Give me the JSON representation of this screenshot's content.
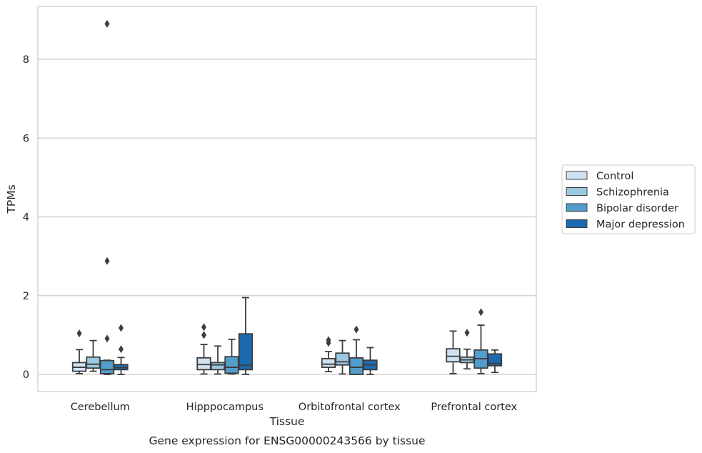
{
  "chart_data": {
    "type": "boxplot",
    "title": "",
    "caption": "Gene expression for ENSG00000243566 by tissue",
    "xlabel": "Tissue",
    "ylabel": "TPMs",
    "categories": [
      "Cerebellum",
      "Hipppocampus",
      "Orbitofrontal cortex",
      "Prefrontal cortex"
    ],
    "ylim": [
      -0.43,
      9.3
    ],
    "yticks": [
      0,
      2,
      4,
      6,
      8
    ],
    "grid": true,
    "legend_position": "right",
    "series": [
      {
        "name": "Control",
        "color": "#d1e2f2",
        "boxes": [
          {
            "whislo": 0.02,
            "q1": 0.08,
            "med": 0.18,
            "q3": 0.3,
            "whishi": 0.63,
            "fliers": [
              1.04
            ]
          },
          {
            "whislo": 0.01,
            "q1": 0.12,
            "med": 0.25,
            "q3": 0.42,
            "whishi": 0.76,
            "fliers": [
              1.0,
              1.2
            ]
          },
          {
            "whislo": 0.07,
            "q1": 0.18,
            "med": 0.26,
            "q3": 0.4,
            "whishi": 0.58,
            "fliers": [
              0.8,
              0.87
            ]
          },
          {
            "whislo": 0.02,
            "q1": 0.32,
            "med": 0.46,
            "q3": 0.65,
            "whishi": 1.1,
            "fliers": []
          }
        ]
      },
      {
        "name": "Schizophrenia",
        "color": "#9ac8e0",
        "boxes": [
          {
            "whislo": 0.08,
            "q1": 0.16,
            "med": 0.26,
            "q3": 0.44,
            "whishi": 0.86,
            "fliers": []
          },
          {
            "whislo": 0.01,
            "q1": 0.12,
            "med": 0.24,
            "q3": 0.3,
            "whishi": 0.72,
            "fliers": []
          },
          {
            "whislo": 0.01,
            "q1": 0.24,
            "med": 0.32,
            "q3": 0.54,
            "whishi": 0.86,
            "fliers": []
          },
          {
            "whislo": 0.14,
            "q1": 0.3,
            "med": 0.37,
            "q3": 0.44,
            "whishi": 0.64,
            "fliers": [
              1.06
            ]
          }
        ]
      },
      {
        "name": "Bipolar disorder",
        "color": "#529dcc",
        "boxes": [
          {
            "whislo": 0.0,
            "q1": 0.02,
            "med": 0.12,
            "q3": 0.35,
            "whishi": 0.36,
            "fliers": [
              0.91,
              2.88,
              8.9
            ]
          },
          {
            "whislo": 0.01,
            "q1": 0.03,
            "med": 0.18,
            "q3": 0.45,
            "whishi": 0.89,
            "fliers": []
          },
          {
            "whislo": 0.0,
            "q1": 0.0,
            "med": 0.18,
            "q3": 0.42,
            "whishi": 0.88,
            "fliers": [
              1.14
            ]
          },
          {
            "whislo": 0.02,
            "q1": 0.16,
            "med": 0.4,
            "q3": 0.62,
            "whishi": 1.25,
            "fliers": [
              1.58
            ]
          }
        ]
      },
      {
        "name": "Major depression",
        "color": "#1c6aaf",
        "boxes": [
          {
            "whislo": 0.0,
            "q1": 0.12,
            "med": 0.17,
            "q3": 0.25,
            "whishi": 0.43,
            "fliers": [
              0.64,
              1.18
            ]
          },
          {
            "whislo": 0.0,
            "q1": 0.12,
            "med": 0.23,
            "q3": 1.03,
            "whishi": 1.95,
            "fliers": []
          },
          {
            "whislo": 0.0,
            "q1": 0.12,
            "med": 0.24,
            "q3": 0.36,
            "whishi": 0.68,
            "fliers": []
          },
          {
            "whislo": 0.05,
            "q1": 0.22,
            "med": 0.28,
            "q3": 0.52,
            "whishi": 0.62,
            "fliers": []
          }
        ]
      }
    ]
  }
}
